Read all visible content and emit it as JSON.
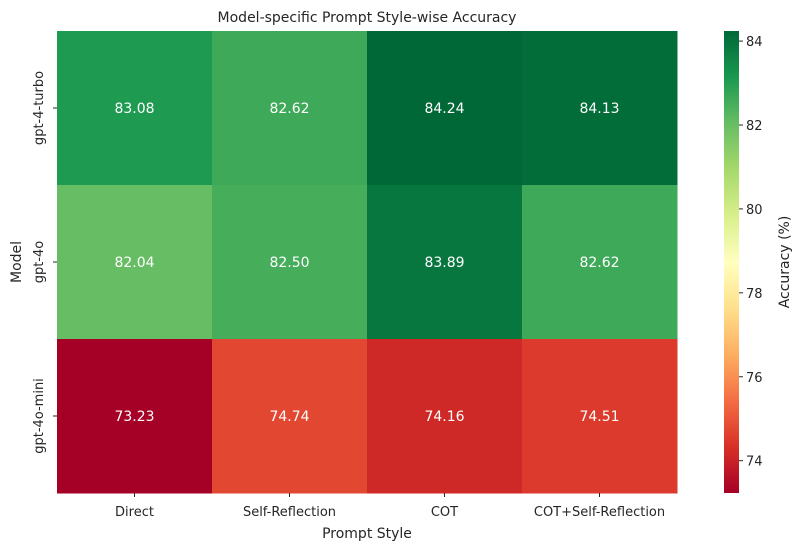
{
  "chart_data": {
    "type": "heatmap",
    "title": "Model-specific Prompt Style-wise Accuracy",
    "xlabel": "Prompt Style",
    "ylabel": "Model",
    "x_categories": [
      "Direct",
      "Self-Reflection",
      "COT",
      "COT+Self-Reflection"
    ],
    "y_categories": [
      "gpt-4-turbo",
      "gpt-4o",
      "gpt-4o-mini"
    ],
    "values": [
      [
        83.08,
        82.62,
        84.24,
        84.13
      ],
      [
        82.04,
        82.5,
        83.89,
        82.62
      ],
      [
        73.23,
        74.74,
        74.16,
        74.51
      ]
    ],
    "value_labels": [
      [
        "83.08",
        "82.62",
        "84.24",
        "84.13"
      ],
      [
        "82.04",
        "82.50",
        "83.89",
        "82.62"
      ],
      [
        "73.23",
        "74.74",
        "74.16",
        "74.51"
      ]
    ],
    "colormap": "RdYlGn",
    "color_range": [
      73.23,
      84.24
    ],
    "colorbar": {
      "label": "Accuracy (%)",
      "ticks": [
        74,
        76,
        78,
        80,
        82,
        84
      ],
      "tick_labels": [
        "74",
        "76",
        "78",
        "80",
        "82",
        "84"
      ]
    }
  }
}
